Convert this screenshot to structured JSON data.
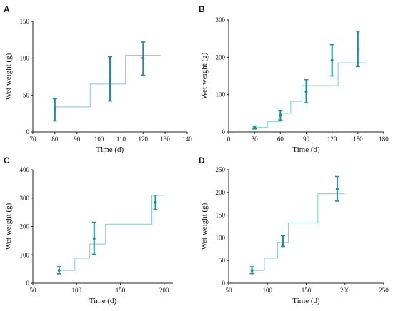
{
  "chart_data": [
    {
      "type": "scatter",
      "panel_label": "A",
      "xlabel": "Time (d)",
      "ylabel": "Wet weight (g)",
      "xlim": [
        70,
        140
      ],
      "ylim": [
        0,
        150
      ],
      "xticks": [
        70,
        80,
        90,
        100,
        110,
        120,
        130,
        140
      ],
      "yticks": [
        0,
        50,
        100,
        150
      ],
      "points": [
        {
          "x": 80,
          "y": 30,
          "err_low": 15,
          "err_high": 45
        },
        {
          "x": 105,
          "y": 72,
          "err_low": 42,
          "err_high": 102
        },
        {
          "x": 120,
          "y": 100,
          "err_low": 77,
          "err_high": 122
        }
      ],
      "step": [
        [
          80,
          34
        ],
        [
          96,
          34
        ],
        [
          96,
          65
        ],
        [
          112,
          65
        ],
        [
          112,
          104
        ],
        [
          128,
          104
        ]
      ]
    },
    {
      "type": "scatter",
      "panel_label": "B",
      "xlabel": "Time (d)",
      "ylabel": "Wet weight (g)",
      "xlim": [
        0,
        180
      ],
      "ylim": [
        0,
        300
      ],
      "xticks": [
        0,
        30,
        60,
        90,
        120,
        150,
        180
      ],
      "yticks": [
        0,
        100,
        200,
        300
      ],
      "points": [
        {
          "x": 30,
          "y": 12,
          "err_low": 8,
          "err_high": 16
        },
        {
          "x": 60,
          "y": 45,
          "err_low": 32,
          "err_high": 58
        },
        {
          "x": 90,
          "y": 108,
          "err_low": 78,
          "err_high": 140
        },
        {
          "x": 120,
          "y": 192,
          "err_low": 150,
          "err_high": 234
        },
        {
          "x": 150,
          "y": 222,
          "err_low": 175,
          "err_high": 270
        }
      ],
      "step": [
        [
          30,
          12
        ],
        [
          45,
          12
        ],
        [
          45,
          28
        ],
        [
          60,
          28
        ],
        [
          60,
          50
        ],
        [
          72,
          50
        ],
        [
          72,
          82
        ],
        [
          85,
          82
        ],
        [
          85,
          124
        ],
        [
          127,
          124
        ],
        [
          127,
          185
        ],
        [
          160,
          185
        ]
      ]
    },
    {
      "type": "scatter",
      "panel_label": "C",
      "xlabel": "Time (d)",
      "ylabel": "Wet weight (g)",
      "xlim": [
        50,
        210
      ],
      "ylim": [
        0,
        400
      ],
      "xticks": [
        50,
        100,
        150,
        200
      ],
      "yticks": [
        0,
        100,
        200,
        300,
        400
      ],
      "points": [
        {
          "x": 80,
          "y": 45,
          "err_low": 33,
          "err_high": 58
        },
        {
          "x": 120,
          "y": 158,
          "err_low": 102,
          "err_high": 215
        },
        {
          "x": 190,
          "y": 285,
          "err_low": 260,
          "err_high": 310
        }
      ],
      "step": [
        [
          80,
          45
        ],
        [
          98,
          45
        ],
        [
          98,
          88
        ],
        [
          115,
          88
        ],
        [
          115,
          138
        ],
        [
          133,
          138
        ],
        [
          133,
          208
        ],
        [
          186,
          208
        ],
        [
          186,
          310
        ],
        [
          200,
          310
        ]
      ]
    },
    {
      "type": "scatter",
      "panel_label": "D",
      "xlabel": "Time (d)",
      "ylabel": "Wet weight (g)",
      "xlim": [
        50,
        250
      ],
      "ylim": [
        0,
        250
      ],
      "xticks": [
        50,
        100,
        150,
        200,
        250
      ],
      "yticks": [
        0,
        50,
        100,
        150,
        200,
        250
      ],
      "points": [
        {
          "x": 80,
          "y": 28,
          "err_low": 21,
          "err_high": 36
        },
        {
          "x": 120,
          "y": 92,
          "err_low": 81,
          "err_high": 105
        },
        {
          "x": 190,
          "y": 207,
          "err_low": 181,
          "err_high": 235
        }
      ],
      "step": [
        [
          80,
          28
        ],
        [
          96,
          28
        ],
        [
          96,
          55
        ],
        [
          113,
          55
        ],
        [
          113,
          90
        ],
        [
          127,
          90
        ],
        [
          127,
          133
        ],
        [
          165,
          133
        ],
        [
          165,
          197
        ],
        [
          200,
          197
        ]
      ]
    }
  ]
}
